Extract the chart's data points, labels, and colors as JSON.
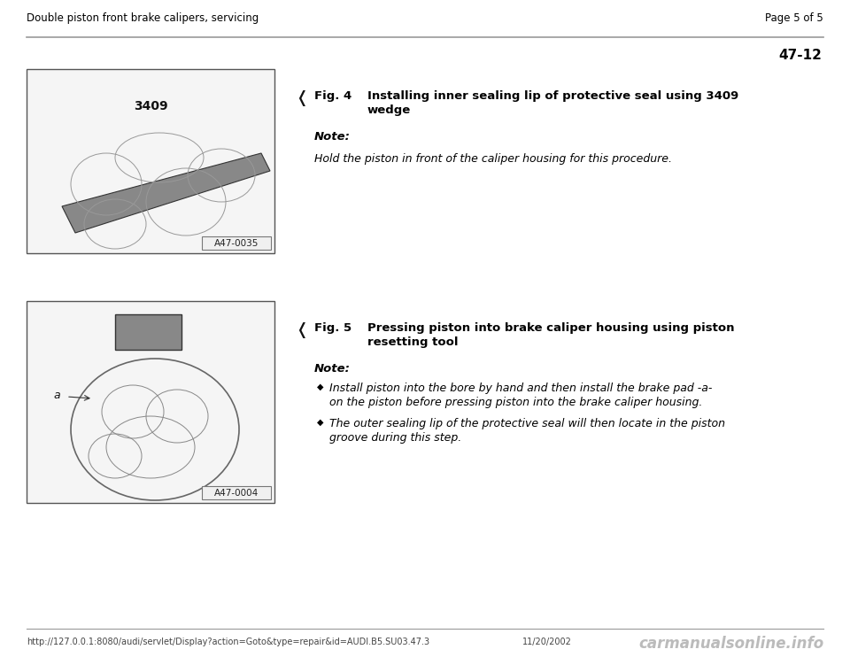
{
  "bg_color": "#ffffff",
  "header_left": "Double piston front brake calipers, servicing",
  "header_right": "Page 5 of 5",
  "section_number": "47-12",
  "fig4_label": "Fig. 4",
  "fig4_tab": "    ",
  "fig4_desc_line1": "Installing inner sealing lip of protective seal using 3409",
  "fig4_desc_line2": "wedge",
  "fig4_note_label": "Note:",
  "fig4_note_text": "Hold the piston in front of the caliper housing for this procedure.",
  "fig4_img_label": "A47-0035",
  "fig5_label": "Fig. 5",
  "fig5_desc_line1": "Pressing piston into brake caliper housing using piston",
  "fig5_desc_line2": "resetting tool",
  "fig5_note_label": "Note:",
  "fig5_bullet1_line1": "Install piston into the bore by hand and then install the brake pad -a-",
  "fig5_bullet1_line2": "on the piston before pressing piston into the brake caliper housing.",
  "fig5_bullet2_line1": "The outer sealing lip of the protective seal will then locate in the piston",
  "fig5_bullet2_line2": "groove during this step.",
  "fig5_img_label": "A47-0004",
  "footer_url": "http://127.0.0.1:8080/audi/servlet/Display?action=Goto&type=repair&id=AUDI.B5.SU03.47.3",
  "footer_date": "11/20/2002",
  "footer_watermark": "carmanualsonline.info",
  "line_color": "#999999",
  "text_color": "#000000",
  "img_border_color": "#555555",
  "img_bg_color": "#f5f5f5",
  "label_box_bg": "#f0f0f0",
  "label_box_border": "#777777"
}
